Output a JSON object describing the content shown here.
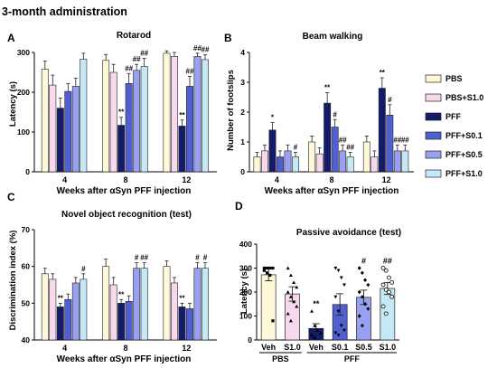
{
  "figure_title": "3-month administration",
  "colors": {
    "PBS": "#fff8d8",
    "PBS+S1.0": "#f7d8ec",
    "PFF": "#141b6b",
    "PFF+S0.1": "#5060d0",
    "PFF+S0.5": "#9aa0f0",
    "PFF+S1.0": "#c5e8f7"
  },
  "legend": [
    "PBS",
    "PBS+S1.0",
    "PFF",
    "PFF+S0.1",
    "PFF+S0.5",
    "PFF+S1.0"
  ],
  "chart_data": [
    {
      "panel": "A",
      "type": "bar",
      "title": "Rotarod",
      "xlabel": "Weeks after αSyn PFF injection",
      "ylabel": "Latency (s)",
      "ylim": [
        0,
        300
      ],
      "yticks": [
        0,
        100,
        200,
        300
      ],
      "categories": [
        "4",
        "8",
        "12"
      ],
      "series": [
        {
          "name": "PBS",
          "values": [
            258,
            280,
            298
          ],
          "err": [
            20,
            15,
            6
          ]
        },
        {
          "name": "PBS+S1.0",
          "values": [
            218,
            250,
            290
          ],
          "err": [
            25,
            20,
            10
          ]
        },
        {
          "name": "PFF",
          "values": [
            160,
            117,
            115
          ],
          "err": [
            25,
            20,
            15
          ]
        },
        {
          "name": "PFF+S0.1",
          "values": [
            202,
            222,
            215
          ],
          "err": [
            20,
            25,
            25
          ]
        },
        {
          "name": "PFF+S0.5",
          "values": [
            215,
            255,
            290
          ],
          "err": [
            20,
            15,
            8
          ]
        },
        {
          "name": "PFF+S1.0",
          "values": [
            283,
            265,
            282
          ],
          "err": [
            15,
            20,
            12
          ]
        }
      ],
      "annotations": [
        {
          "cat": 1,
          "series": 2,
          "text": "**"
        },
        {
          "cat": 1,
          "series": 3,
          "text": "##"
        },
        {
          "cat": 1,
          "series": 4,
          "text": "##"
        },
        {
          "cat": 1,
          "series": 5,
          "text": "##"
        },
        {
          "cat": 2,
          "series": 2,
          "text": "**"
        },
        {
          "cat": 2,
          "series": 3,
          "text": "##"
        },
        {
          "cat": 2,
          "series": 4,
          "text": "##"
        },
        {
          "cat": 2,
          "series": 5,
          "text": "##"
        }
      ]
    },
    {
      "panel": "B",
      "type": "bar",
      "title": "Beam walking",
      "xlabel": "Weeks after αSyn PFF injection",
      "ylabel": "Number of footslips",
      "ylim": [
        0,
        4
      ],
      "yticks": [
        0,
        1,
        2,
        3,
        4
      ],
      "categories": [
        "4",
        "8",
        "12"
      ],
      "series": [
        {
          "name": "PBS",
          "values": [
            0.5,
            1.0,
            1.0
          ],
          "err": [
            0.15,
            0.2,
            0.2
          ]
        },
        {
          "name": "PBS+S1.0",
          "values": [
            0.7,
            0.6,
            0.5
          ],
          "err": [
            0.2,
            0.2,
            0.2
          ]
        },
        {
          "name": "PFF",
          "values": [
            1.4,
            2.3,
            2.8
          ],
          "err": [
            0.25,
            0.35,
            0.35
          ]
        },
        {
          "name": "PFF+S0.1",
          "values": [
            0.5,
            1.5,
            1.9
          ],
          "err": [
            0.2,
            0.25,
            0.35
          ]
        },
        {
          "name": "PFF+S0.5",
          "values": [
            0.7,
            0.7,
            0.7
          ],
          "err": [
            0.2,
            0.2,
            0.2
          ]
        },
        {
          "name": "PFF+S1.0",
          "values": [
            0.5,
            0.5,
            0.7
          ],
          "err": [
            0.15,
            0.15,
            0.2
          ]
        }
      ],
      "annotations": [
        {
          "cat": 0,
          "series": 2,
          "text": "*"
        },
        {
          "cat": 0,
          "series": 5,
          "text": "#"
        },
        {
          "cat": 1,
          "series": 2,
          "text": "**"
        },
        {
          "cat": 1,
          "series": 3,
          "text": "#"
        },
        {
          "cat": 1,
          "series": 4,
          "text": "##"
        },
        {
          "cat": 1,
          "series": 5,
          "text": "##"
        },
        {
          "cat": 2,
          "series": 2,
          "text": "**"
        },
        {
          "cat": 2,
          "series": 3,
          "text": "#"
        },
        {
          "cat": 2,
          "series": 4,
          "text": "##"
        },
        {
          "cat": 2,
          "series": 5,
          "text": "##"
        }
      ]
    },
    {
      "panel": "C",
      "type": "bar",
      "title": "Novel object recognition (test)",
      "xlabel": "Weeks after αSyn PFF injection",
      "ylabel": "Discrimination index (%)",
      "ylim": [
        40,
        70
      ],
      "yticks": [
        40,
        50,
        60,
        70
      ],
      "categories": [
        "4",
        "8",
        "12"
      ],
      "series": [
        {
          "name": "PBS",
          "values": [
            58,
            60,
            60
          ],
          "err": [
            1.5,
            2,
            1.5
          ]
        },
        {
          "name": "PBS+S1.0",
          "values": [
            56.5,
            55,
            55.5
          ],
          "err": [
            1.5,
            2,
            1.5
          ]
        },
        {
          "name": "PFF",
          "values": [
            49,
            50,
            49
          ],
          "err": [
            1,
            1,
            1
          ]
        },
        {
          "name": "PFF+S0.1",
          "values": [
            51,
            50.5,
            48.5
          ],
          "err": [
            1.5,
            1.5,
            1.5
          ]
        },
        {
          "name": "PFF+S0.5",
          "values": [
            55.5,
            59.5,
            59.5
          ],
          "err": [
            1.5,
            1.5,
            1.5
          ]
        },
        {
          "name": "PFF+S1.0",
          "values": [
            56.5,
            59.5,
            59.5
          ],
          "err": [
            1.5,
            1.5,
            1.5
          ]
        }
      ],
      "annotations": [
        {
          "cat": 0,
          "series": 2,
          "text": "**"
        },
        {
          "cat": 0,
          "series": 5,
          "text": "#"
        },
        {
          "cat": 1,
          "series": 2,
          "text": "**"
        },
        {
          "cat": 1,
          "series": 4,
          "text": "#"
        },
        {
          "cat": 1,
          "series": 5,
          "text": "##"
        },
        {
          "cat": 2,
          "series": 2,
          "text": "**"
        },
        {
          "cat": 2,
          "series": 4,
          "text": "#"
        },
        {
          "cat": 2,
          "series": 5,
          "text": "#"
        }
      ]
    },
    {
      "panel": "D",
      "type": "bar",
      "title": "Passive avoidance (test)",
      "ylabel": "Latency (s)",
      "ylim": [
        0,
        400
      ],
      "yticks": [
        0,
        100,
        200,
        300,
        400
      ],
      "categories": [
        "Veh",
        "S1.0",
        "Veh",
        "S0.1",
        "S0.5",
        "S1.0"
      ],
      "groups": [
        {
          "label": "PBS",
          "from": 0,
          "to": 1
        },
        {
          "label": "PFF",
          "from": 2,
          "to": 5
        }
      ],
      "series": [
        {
          "name": "PBS",
          "value": 272,
          "err": 25,
          "points": [
            300,
            300,
            300,
            300,
            290,
            280,
            270,
            80
          ]
        },
        {
          "name": "PBS+S1.0",
          "value": 192,
          "err": 30,
          "points": [
            300,
            270,
            240,
            220,
            200,
            180,
            160,
            140,
            110,
            80
          ]
        },
        {
          "name": "PFF",
          "value": 48,
          "err": 20,
          "points": [
            120,
            60,
            40,
            30,
            20,
            10
          ]
        },
        {
          "name": "PFF+S0.1",
          "value": 148,
          "err": 45,
          "points": [
            300,
            290,
            260,
            230,
            180,
            120,
            60,
            40,
            30,
            20
          ]
        },
        {
          "name": "PFF+S0.5",
          "value": 178,
          "err": 30,
          "points": [
            300,
            280,
            250,
            230,
            200,
            180,
            150,
            130,
            100,
            60
          ]
        },
        {
          "name": "PFF+S1.0",
          "value": 215,
          "err": 25,
          "points": [
            300,
            290,
            260,
            240,
            230,
            210,
            200,
            180,
            140,
            110
          ]
        }
      ],
      "annotations": [
        {
          "series": 2,
          "text": "**"
        },
        {
          "series": 4,
          "text": "#"
        },
        {
          "series": 5,
          "text": "##"
        }
      ]
    }
  ]
}
